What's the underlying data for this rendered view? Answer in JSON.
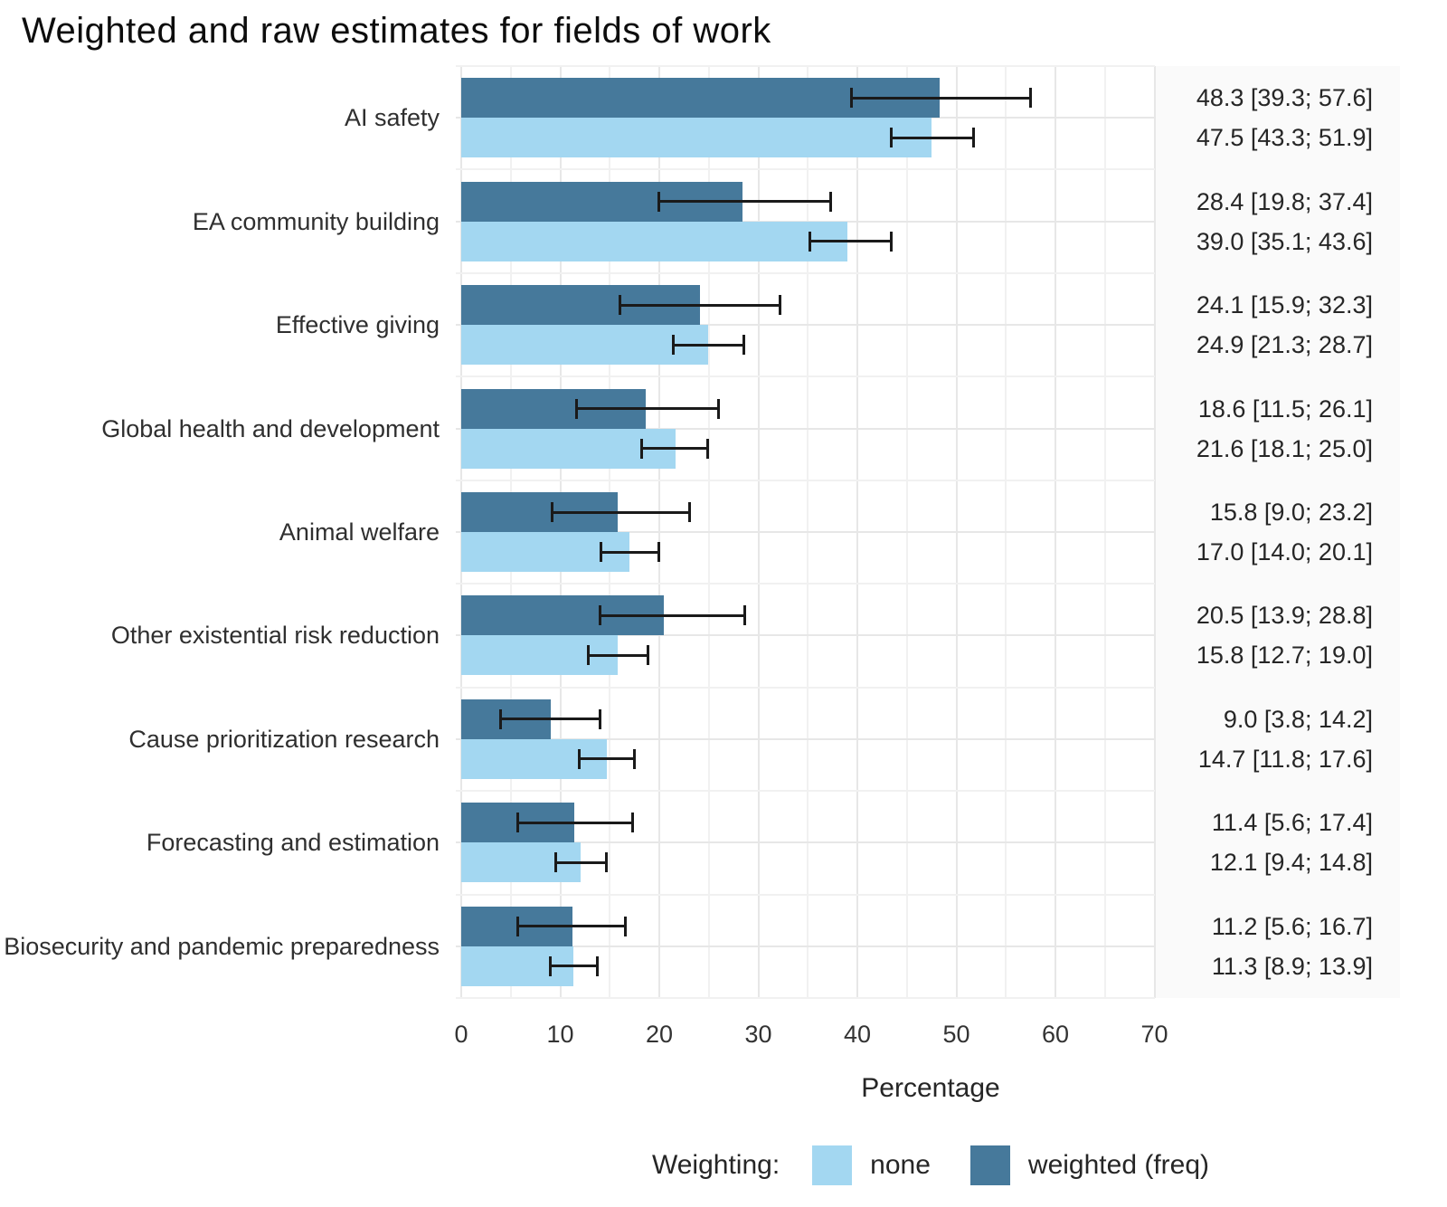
{
  "title": "Weighted and raw estimates for fields of work",
  "axis": {
    "label": "Percentage"
  },
  "legend": {
    "title": "Weighting:",
    "entries": [
      {
        "label": "none",
        "color": "#a3d7f1"
      },
      {
        "label": "weighted (freq)",
        "color": "#46799b"
      }
    ]
  },
  "colors": {
    "bar_none": "#a3d7f1",
    "bar_weighted": "#46799b",
    "error_bar": "#1a1a1a",
    "annotation_panel_bg": "#fafafa",
    "grid_major": "#e7e7e7",
    "grid_minor": "#f1f1f1"
  },
  "chart_data": {
    "type": "bar",
    "orientation": "horizontal",
    "title": "Weighted and raw estimates for fields of work",
    "xlabel": "Percentage",
    "xlim": [
      0,
      70
    ],
    "xticks": [
      0,
      10,
      20,
      30,
      40,
      50,
      60,
      70
    ],
    "grid": true,
    "legend_position": "bottom",
    "legend_title": "Weighting:",
    "categories": [
      "AI safety",
      "EA community building",
      "Effective giving",
      "Global health and development",
      "Animal welfare",
      "Other existential risk reduction",
      "Cause prioritization research",
      "Forecasting and estimation",
      "Biosecurity and pandemic preparedness"
    ],
    "series": [
      {
        "name": "weighted (freq)",
        "color": "#46799b",
        "values": [
          48.3,
          28.4,
          24.1,
          18.6,
          15.8,
          20.5,
          9.0,
          11.4,
          11.2
        ],
        "ci_low": [
          39.3,
          19.8,
          15.9,
          11.5,
          9.0,
          13.9,
          3.8,
          5.6,
          5.6
        ],
        "ci_high": [
          57.6,
          37.4,
          32.3,
          26.1,
          23.2,
          28.8,
          14.2,
          17.4,
          16.7
        ],
        "annotations": [
          "48.3 [39.3; 57.6]",
          "28.4 [19.8; 37.4]",
          "24.1 [15.9; 32.3]",
          "18.6 [11.5; 26.1]",
          "15.8 [9.0; 23.2]",
          "20.5 [13.9; 28.8]",
          "9.0 [3.8; 14.2]",
          "11.4 [5.6; 17.4]",
          "11.2 [5.6; 16.7]"
        ]
      },
      {
        "name": "none",
        "color": "#a3d7f1",
        "values": [
          47.5,
          39.0,
          24.9,
          21.6,
          17.0,
          15.8,
          14.7,
          12.1,
          11.3
        ],
        "ci_low": [
          43.3,
          35.1,
          21.3,
          18.1,
          14.0,
          12.7,
          11.8,
          9.4,
          8.9
        ],
        "ci_high": [
          51.9,
          43.6,
          28.7,
          25.0,
          20.1,
          19.0,
          17.6,
          14.8,
          13.9
        ],
        "annotations": [
          "47.5 [43.3; 51.9]",
          "39.0 [35.1; 43.6]",
          "24.9 [21.3; 28.7]",
          "21.6 [18.1; 25.0]",
          "17.0 [14.0; 20.1]",
          "15.8 [12.7; 19.0]",
          "14.7 [11.8; 17.6]",
          "12.1 [9.4; 14.8]",
          "11.3 [8.9; 13.9]"
        ]
      }
    ]
  }
}
